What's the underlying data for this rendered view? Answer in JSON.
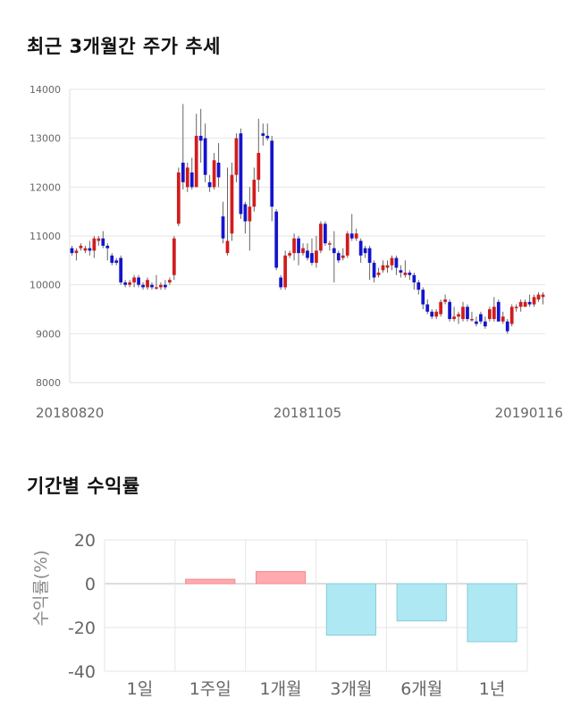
{
  "sections": {
    "price_title": "최근 3개월간 주가 추세",
    "return_title": "기간별 수익률"
  },
  "colors": {
    "up": "#d11c1c",
    "down": "#1414cc",
    "positive_bar": "#ffaaae",
    "negative_bar": "#aee9f3",
    "grid": "#e6e6e6"
  },
  "chart_data": [
    {
      "type": "candlestick",
      "title": "최근 3개월간 주가 추세",
      "ylim": [
        8000,
        14000
      ],
      "yticks": [
        8000,
        9000,
        10000,
        11000,
        12000,
        13000,
        14000
      ],
      "xtick_labels": [
        {
          "label": "20180820",
          "index": 0
        },
        {
          "label": "20181105",
          "index": 53
        },
        {
          "label": "20190116",
          "index": 101
        }
      ],
      "grid": true,
      "candles": [
        [
          10750,
          10650,
          10800,
          10600
        ],
        [
          10650,
          10700,
          10750,
          10500
        ],
        [
          10750,
          10800,
          10850,
          10700
        ],
        [
          10700,
          10750,
          10800,
          10650
        ],
        [
          10750,
          10700,
          10900,
          10600
        ],
        [
          10700,
          10950,
          11000,
          10550
        ],
        [
          10900,
          10950,
          11000,
          10800
        ],
        [
          10950,
          10800,
          11100,
          10750
        ],
        [
          10800,
          10750,
          10850,
          10500
        ],
        [
          10600,
          10450,
          10650,
          10400
        ],
        [
          10500,
          10450,
          10550,
          10400
        ],
        [
          10550,
          10050,
          10600,
          10000
        ],
        [
          10050,
          10000,
          10100,
          9950
        ],
        [
          10000,
          10050,
          10100,
          9950
        ],
        [
          10050,
          10150,
          10200,
          9950
        ],
        [
          10150,
          10000,
          10200,
          9950
        ],
        [
          10000,
          9950,
          10050,
          9900
        ],
        [
          9950,
          10100,
          10150,
          9900
        ],
        [
          10000,
          9950,
          10050,
          9900
        ],
        [
          9950,
          9950,
          10200,
          9900
        ],
        [
          9950,
          10000,
          10050,
          9900
        ],
        [
          10000,
          9950,
          10100,
          9900
        ],
        [
          10050,
          10100,
          10150,
          10000
        ],
        [
          10200,
          10950,
          11000,
          10100
        ],
        [
          11250,
          12300,
          12400,
          11200
        ],
        [
          12500,
          12100,
          13700,
          11950
        ],
        [
          12000,
          12400,
          12500,
          11900
        ],
        [
          12300,
          12000,
          12600,
          11950
        ],
        [
          12000,
          13050,
          13500,
          12000
        ],
        [
          13050,
          12950,
          13600,
          12500
        ],
        [
          13000,
          12250,
          13300,
          12100
        ],
        [
          12100,
          12000,
          12250,
          11900
        ],
        [
          12000,
          12550,
          12700,
          11950
        ],
        [
          12500,
          12200,
          12900,
          12000
        ],
        [
          11400,
          10950,
          11700,
          10850
        ],
        [
          10650,
          10900,
          12400,
          10600
        ],
        [
          11050,
          12250,
          12500,
          10900
        ],
        [
          12250,
          13000,
          13100,
          12100
        ],
        [
          13100,
          11450,
          13200,
          11350
        ],
        [
          11650,
          11300,
          11700,
          11050
        ],
        [
          11300,
          11600,
          12000,
          10700
        ],
        [
          11600,
          12150,
          12400,
          11500
        ],
        [
          12150,
          12700,
          13400,
          11900
        ],
        [
          13100,
          13050,
          13300,
          12850
        ],
        [
          13050,
          13000,
          13300,
          12950
        ],
        [
          12950,
          11600,
          13050,
          11300
        ],
        [
          11500,
          10350,
          11550,
          10300
        ],
        [
          10150,
          9950,
          10200,
          9900
        ],
        [
          9950,
          10600,
          10700,
          9900
        ],
        [
          10600,
          10650,
          10700,
          10550
        ],
        [
          10650,
          10950,
          11050,
          10500
        ],
        [
          10950,
          10650,
          11000,
          10400
        ],
        [
          10650,
          10750,
          10850,
          10600
        ],
        [
          10700,
          10550,
          10850,
          10500
        ],
        [
          10650,
          10450,
          10950,
          10400
        ],
        [
          10450,
          10700,
          11000,
          10350
        ],
        [
          10700,
          11250,
          11300,
          10650
        ],
        [
          11250,
          10850,
          11300,
          10800
        ],
        [
          10850,
          10850,
          10900,
          10700
        ],
        [
          10750,
          10650,
          11100,
          10050
        ],
        [
          10650,
          10500,
          10700,
          10450
        ],
        [
          10550,
          10600,
          10750,
          10500
        ],
        [
          10600,
          11050,
          11100,
          10550
        ],
        [
          11050,
          10950,
          11450,
          10900
        ],
        [
          10950,
          11050,
          11150,
          10900
        ],
        [
          10900,
          10600,
          10950,
          10450
        ],
        [
          10750,
          10650,
          10800,
          10550
        ],
        [
          10750,
          10450,
          10800,
          10100
        ],
        [
          10450,
          10150,
          10500,
          10050
        ],
        [
          10200,
          10250,
          10350,
          10150
        ],
        [
          10300,
          10400,
          10500,
          10250
        ],
        [
          10350,
          10400,
          10500,
          10250
        ],
        [
          10400,
          10550,
          10600,
          10300
        ],
        [
          10550,
          10350,
          10600,
          10200
        ],
        [
          10300,
          10250,
          10400,
          10150
        ],
        [
          10200,
          10250,
          10500,
          10150
        ],
        [
          10250,
          10200,
          10300,
          10100
        ],
        [
          10200,
          10050,
          10250,
          9900
        ],
        [
          10050,
          9900,
          10100,
          9800
        ],
        [
          9900,
          9600,
          9950,
          9500
        ],
        [
          9600,
          9450,
          9700,
          9400
        ],
        [
          9450,
          9350,
          9500,
          9300
        ],
        [
          9350,
          9450,
          9500,
          9300
        ],
        [
          9400,
          9650,
          9700,
          9350
        ],
        [
          9650,
          9700,
          9800,
          9600
        ],
        [
          9650,
          9300,
          9700,
          9250
        ],
        [
          9300,
          9350,
          9550,
          9250
        ],
        [
          9350,
          9400,
          9450,
          9200
        ],
        [
          9300,
          9550,
          9650,
          9250
        ],
        [
          9550,
          9300,
          9600,
          9250
        ],
        [
          9300,
          9300,
          9450,
          9250
        ],
        [
          9250,
          9200,
          9350,
          9150
        ],
        [
          9400,
          9250,
          9450,
          9200
        ],
        [
          9250,
          9150,
          9350,
          9100
        ],
        [
          9300,
          9500,
          9550,
          9250
        ],
        [
          9300,
          9550,
          9750,
          9250
        ],
        [
          9650,
          9250,
          9700,
          9250
        ],
        [
          9250,
          9350,
          9450,
          9200
        ],
        [
          9250,
          9050,
          9300,
          9000
        ],
        [
          9200,
          9550,
          9600,
          9150
        ],
        [
          9550,
          9550,
          9600,
          9450
        ],
        [
          9550,
          9650,
          9700,
          9450
        ],
        [
          9550,
          9650,
          9700,
          9550
        ],
        [
          9650,
          9600,
          9800,
          9550
        ],
        [
          9600,
          9750,
          9800,
          9550
        ],
        [
          9700,
          9800,
          9850,
          9650
        ],
        [
          9750,
          9800,
          9850,
          9600
        ]
      ]
    },
    {
      "type": "bar",
      "title": "기간별 수익률",
      "categories": [
        "1일",
        "1주일",
        "1개월",
        "3개월",
        "6개월",
        "1년"
      ],
      "values": [
        0,
        2,
        5.5,
        -23.5,
        -17,
        -26.5
      ],
      "ylabel": "수익률(%)",
      "ylim": [
        -40,
        20
      ],
      "yticks": [
        -40,
        -20,
        0,
        20
      ],
      "grid": true
    }
  ]
}
